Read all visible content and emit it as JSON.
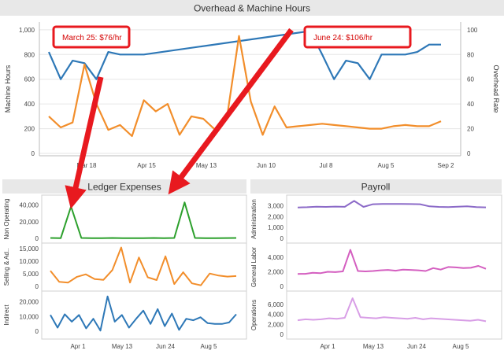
{
  "chart_data": [
    {
      "type": "line",
      "title": "Overhead & Machine Hours",
      "ylabel": "Machine Hours",
      "y2label": "Overhead Rate",
      "ylim": [
        0,
        1050
      ],
      "y2lim": [
        0,
        105
      ],
      "yticks": [
        "0",
        "200",
        "400",
        "600",
        "800",
        "1,000"
      ],
      "y2ticks": [
        "0",
        "20",
        "40",
        "60",
        "80",
        "100"
      ],
      "xticks": [
        "Mar 18",
        "Apr 15",
        "May 13",
        "Jun 10",
        "Jul 8",
        "Aug 5",
        "Sep 2"
      ],
      "series": [
        {
          "name": "Machine Hours",
          "axis": "left",
          "color": "#2e78b7",
          "x": [
            0,
            1,
            2,
            3,
            4,
            5,
            6,
            7,
            8,
            22,
            23,
            24,
            25,
            26,
            27,
            28,
            29,
            30,
            31,
            32,
            33
          ],
          "values": [
            820,
            600,
            750,
            730,
            600,
            820,
            800,
            800,
            800,
            990,
            800,
            600,
            750,
            730,
            600,
            800,
            800,
            800,
            820,
            880,
            880
          ]
        },
        {
          "name": "Overhead Rate",
          "axis": "right",
          "color": "#f28e2b",
          "x": [
            0,
            1,
            2,
            3,
            4,
            5,
            6,
            7,
            8,
            9,
            10,
            11,
            12,
            13,
            14,
            15,
            16,
            17,
            18,
            19,
            20,
            21,
            22,
            23,
            24,
            25,
            26,
            27,
            28,
            29,
            30,
            31,
            32,
            33
          ],
          "values": [
            30,
            21,
            25,
            72,
            40,
            19,
            23,
            14,
            43,
            34,
            40,
            15,
            30,
            28,
            19,
            30,
            95,
            42,
            15,
            38,
            21,
            22,
            23,
            24,
            23,
            22,
            21,
            20,
            20,
            22,
            23,
            22,
            22,
            26
          ]
        }
      ],
      "annotations": [
        {
          "label": "March 25: $76/hr"
        },
        {
          "label": "June 24: $106/hr"
        }
      ]
    },
    {
      "type": "line",
      "title": "Ledger Expenses",
      "xticks": [
        "Apr 1",
        "May 13",
        "Jun 24",
        "Aug 5"
      ],
      "panels": [
        {
          "name": "Non Operating",
          "color": "#2ca02c",
          "ylim": [
            0,
            48000
          ],
          "yticks": [
            "0",
            "20,000",
            "40,000"
          ],
          "values": [
            500,
            200,
            38000,
            500,
            200,
            300,
            500,
            300,
            200,
            300,
            500,
            200,
            500,
            43000,
            500,
            300,
            200,
            400,
            500
          ]
        },
        {
          "name": "Selling & Ad..",
          "color": "#f28e2b",
          "ylim": [
            0,
            16000
          ],
          "yticks": [
            "0",
            "5,000",
            "10,000",
            "15,000"
          ],
          "values": [
            6200,
            1800,
            1500,
            3800,
            4800,
            2900,
            2600,
            6500,
            15500,
            1500,
            11500,
            3600,
            2500,
            12000,
            900,
            5600,
            1200,
            400,
            5100,
            4300,
            3900,
            4100
          ]
        },
        {
          "name": "Indirect",
          "color": "#2e78b7",
          "ylim": [
            -2000,
            25000
          ],
          "yticks": [
            "0",
            "10,000",
            "20,000"
          ],
          "values": [
            11000,
            2500,
            11500,
            6500,
            11000,
            2000,
            8500,
            500,
            23500,
            6500,
            11000,
            2500,
            8500,
            14000,
            5000,
            15000,
            3500,
            12000,
            1000,
            8500,
            7500,
            9500,
            5500,
            5000,
            5000,
            6000,
            11500
          ]
        }
      ]
    },
    {
      "type": "line",
      "title": "Payroll",
      "xticks": [
        "Apr 1",
        "May 13",
        "Jun 24",
        "Aug 5"
      ],
      "panels": [
        {
          "name": "Administration",
          "color": "#8c6bc8",
          "ylim": [
            0,
            3700
          ],
          "yticks": [
            "0",
            "1,000",
            "2,000",
            "3,000"
          ],
          "values": [
            2850,
            2870,
            2920,
            2900,
            2930,
            2910,
            3450,
            2900,
            3150,
            3170,
            3170,
            3170,
            3160,
            3150,
            2950,
            2900,
            2880,
            2920,
            2950,
            2880,
            2860
          ]
        },
        {
          "name": "General Labor",
          "color": "#d45fc0",
          "ylim": [
            0,
            5500
          ],
          "yticks": [
            "0",
            "2,000",
            "4,000"
          ],
          "values": [
            1700,
            1720,
            1850,
            1800,
            2000,
            1950,
            2050,
            5000,
            2100,
            2050,
            2100,
            2200,
            2250,
            2150,
            2300,
            2250,
            2200,
            2100,
            2500,
            2300,
            2650,
            2600,
            2500,
            2550,
            2800,
            2400
          ]
        },
        {
          "name": "Operations",
          "color": "#d89ee6",
          "ylim": [
            0,
            8000
          ],
          "yticks": [
            "0",
            "2,000",
            "4,000",
            "6,000"
          ],
          "values": [
            2800,
            3000,
            2900,
            3000,
            3200,
            3100,
            3300,
            7200,
            3400,
            3300,
            3200,
            3400,
            3300,
            3200,
            3100,
            3300,
            3000,
            3200,
            3100,
            3000,
            2900,
            2800,
            2700,
            2900,
            2600
          ]
        }
      ]
    }
  ]
}
